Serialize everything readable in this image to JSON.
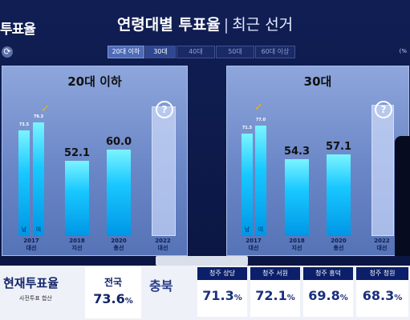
{
  "header": {
    "logo": "투표율",
    "title_main": "연령대별 투표율",
    "title_sep": "|",
    "title_sub": "최근 선거",
    "unit": "(%"
  },
  "tabs": [
    {
      "label": "20대 이하",
      "active": true
    },
    {
      "label": "30대",
      "selected": true
    },
    {
      "label": "40대"
    },
    {
      "label": "50대"
    },
    {
      "label": "60대 이상"
    }
  ],
  "panels": [
    {
      "title": "20대 이하",
      "bars": [
        {
          "election": "2017\n대선",
          "values": [
            73.5,
            79.3
          ],
          "labels": [
            "남",
            "여"
          ],
          "check": true
        },
        {
          "election": "2018\n지선",
          "value": 52.1
        },
        {
          "election": "2020\n총선",
          "value": 60.0
        },
        {
          "election": "2022\n대선",
          "unknown": "?"
        }
      ]
    },
    {
      "title": "30대",
      "bars": [
        {
          "election": "2017\n대선",
          "values": [
            71.5,
            77.0
          ],
          "labels": [
            "남",
            "여"
          ],
          "check": true
        },
        {
          "election": "2018\n지선",
          "value": 54.3
        },
        {
          "election": "2020\n총선",
          "value": 57.1
        },
        {
          "election": "2022\n대선",
          "unknown": "?"
        }
      ]
    }
  ],
  "bottom": {
    "brand": "현재투표율",
    "brand_sub": "사전투표 합산",
    "national_label": "전국",
    "national_value": "73.6",
    "national_unit": "%",
    "region": "충북",
    "districts": [
      {
        "name": "청주 상당",
        "value": "71.3",
        "unit": "%"
      },
      {
        "name": "청주 서원",
        "value": "72.1",
        "unit": "%"
      },
      {
        "name": "청주 흥덕",
        "value": "69.8",
        "unit": "%"
      },
      {
        "name": "청주 청원",
        "value": "68.3",
        "unit": "%"
      }
    ]
  },
  "colors": {
    "bar": "#19c8ff",
    "check": "#f4b400",
    "panel": "#8ea6dc",
    "banner_dark": "#0b1f6a"
  },
  "icons": [
    "refresh-icon",
    "check-icon",
    "question-icon"
  ]
}
